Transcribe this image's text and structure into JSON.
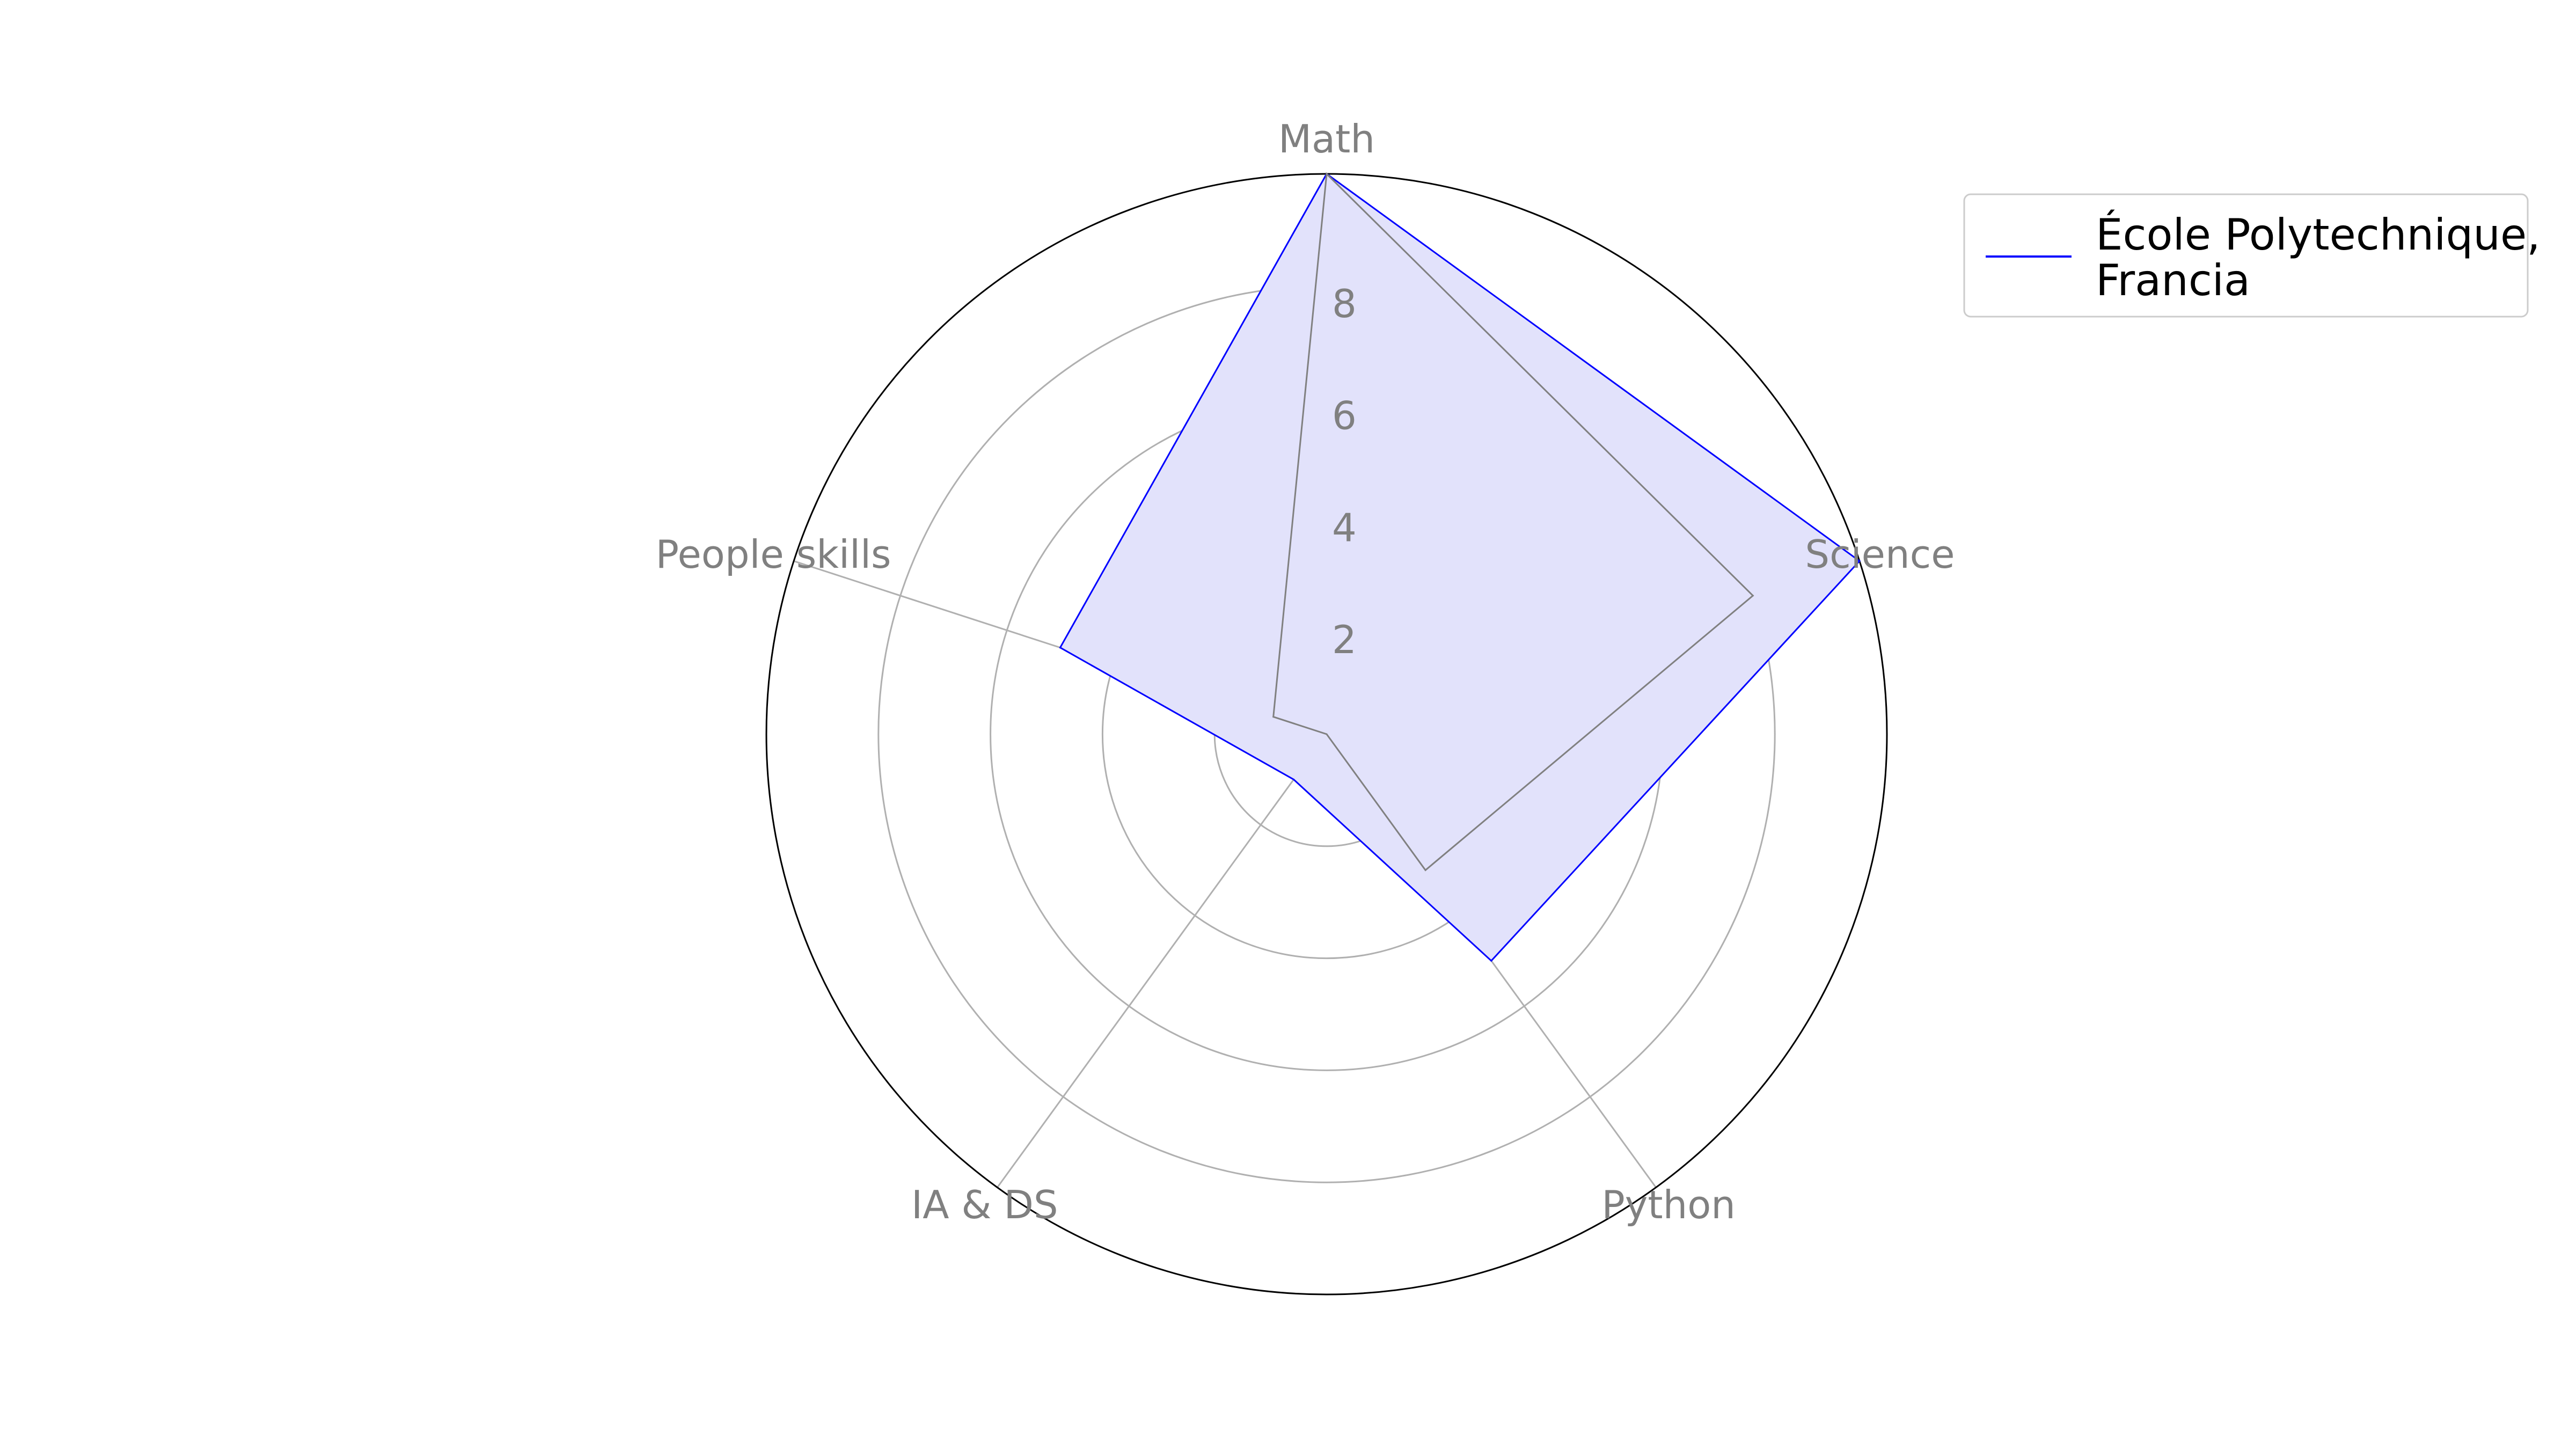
{
  "chart_data": {
    "type": "radar",
    "title": "",
    "categories": [
      "Math",
      "Science",
      "Python",
      "IA & DS",
      "People skills"
    ],
    "rticks": [
      2,
      4,
      6,
      8
    ],
    "rlim": [
      0,
      10
    ],
    "series": [
      {
        "name": "École Polytechnique, Francia",
        "values": [
          10,
          10,
          5,
          1,
          5
        ],
        "line_color": "#0000ff",
        "fill_color": "#e2e2fb"
      },
      {
        "values": [
          10,
          8,
          3,
          0,
          1
        ],
        "line_color": "#808080",
        "fill_color": "none"
      }
    ],
    "legend": {
      "position": "top-right",
      "lines": [
        "École Polytechnique,",
        "Francia"
      ]
    },
    "grid": true
  }
}
